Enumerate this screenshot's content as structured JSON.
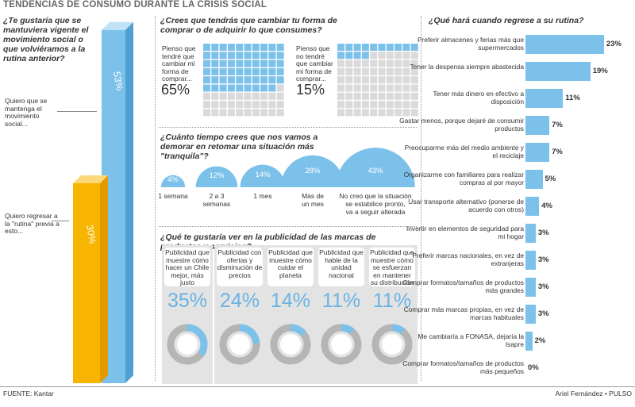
{
  "title": "TENDENCIAS DE CONSUMO DURANTE LA CRISIS SOCIAL",
  "footer": {
    "source": "FUENTE: Kantar",
    "author": "Ariel Fernández • PULSO"
  },
  "colors": {
    "blue": "#7cc1ea",
    "blue_dark": "#4f9fd2",
    "yellow": "#f8b500",
    "gray": "#dadada",
    "gray_dark": "#b5b5b5"
  },
  "chart_data": [
    {
      "type": "bar",
      "id": "movement",
      "title": "¿Te gustaría que se mantuviera vigente el movimiento social o que volviéramos a la rutina anterior?",
      "categories": [
        "Quiero que se mantenga el movimiento social...",
        "Quiero regresar a la \"rutina\" previa a esto..."
      ],
      "values": [
        53,
        30
      ],
      "labels": [
        "53%",
        "30%"
      ]
    },
    {
      "type": "waffle",
      "id": "change",
      "title": "¿Crees que tendrás que cambiar tu forma de comprar o de adquirir lo que consumes?",
      "items": [
        {
          "label": "Pienso que tendré que cambiar mi forma de comprar...",
          "value": 65,
          "value_label": "65%"
        },
        {
          "label": "Pienso que no tendré que cambiar mi forma de comprar...",
          "value": 15,
          "value_label": "15%"
        }
      ]
    },
    {
      "type": "bubble",
      "id": "time",
      "title": "¿Cuánto tiempo crees que nos vamos a demorar en retomar una situación más \"tranquila\"?",
      "categories": [
        "1 semana",
        "2 a 3 semanas",
        "1 mes",
        "Más de un mes",
        "No creo que la situación se estabilice pronto, va a seguir alterada"
      ],
      "values": [
        4,
        12,
        14,
        28,
        43
      ],
      "labels": [
        "4%",
        "12%",
        "14%",
        "28%",
        "43%"
      ]
    },
    {
      "type": "pie",
      "id": "advertising",
      "title": "¿Qué te gustaría ver en la publicidad de las marcas de productos y servicios?",
      "categories": [
        "Publicidad que muestre cómo hacer un Chile mejor, más justo",
        "Publicidad con ofertas y disminución de precios",
        "Publicidad que muestre cómo cuidar el planeta",
        "Publicidad que hable de la unidad nacional",
        "Publicidad que muestre cómo se esfuerzan en mantener su distribución"
      ],
      "values": [
        35,
        24,
        14,
        11,
        11
      ],
      "labels": [
        "35%",
        "24%",
        "14%",
        "11%",
        "11%"
      ]
    },
    {
      "type": "bar",
      "orientation": "horizontal",
      "id": "routine",
      "title": "¿Qué hará cuando regrese a su rutina?",
      "categories": [
        "Preferir almacenes y ferias más que supermercados",
        "Tener la despensa siempre abastecida",
        "Tener más dinero en efectivo a disposición",
        "Gastar menos, porque dejaré de consumir productos",
        "Preocuparme más del medio ambiente y el reciclaje",
        "Organizarme con familiares para realizar compras al por mayor",
        "Usar transporte alternativo (ponerse de acuerdo con otros)",
        "Invertir en elementos de seguridad para mi hogar",
        "Preferir marcas nacionales, en vez de extranjeras",
        "Comprar formatos/tamaños de productos más grandes",
        "Comprar más marcas propias, en vez de marcas habituales",
        "Me cambiaría a FONASA, dejaría la Isapre",
        "Comprar formatos/tamaños de productos más pequeños"
      ],
      "values": [
        23,
        19,
        11,
        7,
        7,
        5,
        4,
        3,
        3,
        3,
        3,
        2,
        0
      ],
      "labels": [
        "23%",
        "19%",
        "11%",
        "7%",
        "7%",
        "5%",
        "4%",
        "3%",
        "3%",
        "3%",
        "3%",
        "2%",
        "0%"
      ]
    }
  ]
}
